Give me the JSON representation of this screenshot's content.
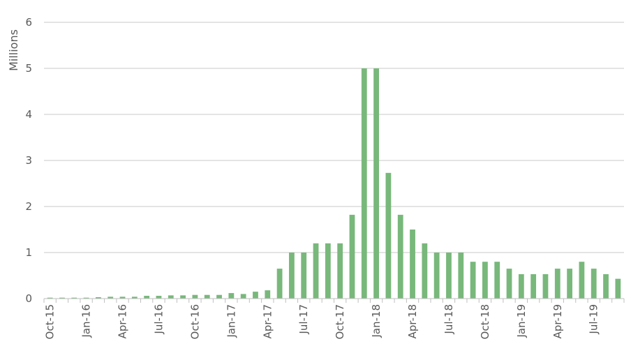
{
  "chart_data": {
    "type": "bar",
    "title": "",
    "xlabel": "",
    "ylabel": "Millions",
    "ylim": [
      0,
      6
    ],
    "yticks": [
      0,
      1,
      2,
      3,
      4,
      5,
      6
    ],
    "grid": true,
    "legend": "none",
    "colors": {
      "bar": "#78b87b",
      "grid": "#c9c9c9",
      "axis": "#bfbfbf",
      "text": "#595959"
    },
    "categories": [
      "Oct-15",
      "Nov-15",
      "Dec-15",
      "Jan-16",
      "Feb-16",
      "Mar-16",
      "Apr-16",
      "May-16",
      "Jun-16",
      "Jul-16",
      "Aug-16",
      "Sep-16",
      "Oct-16",
      "Nov-16",
      "Dec-16",
      "Jan-17",
      "Feb-17",
      "Mar-17",
      "Apr-17",
      "May-17",
      "Jun-17",
      "Jul-17",
      "Aug-17",
      "Sep-17",
      "Oct-17",
      "Nov-17",
      "Dec-17",
      "Jan-18",
      "Feb-18",
      "Mar-18",
      "Apr-18",
      "May-18",
      "Jun-18",
      "Jul-18",
      "Aug-18",
      "Sep-18",
      "Oct-18",
      "Nov-18",
      "Dec-18",
      "Jan-19",
      "Feb-19",
      "Mar-19",
      "Apr-19",
      "May-19",
      "Jun-19",
      "Jul-19",
      "Aug-19",
      "Sep-19"
    ],
    "values": [
      0.02,
      0.02,
      0.02,
      0.02,
      0.03,
      0.04,
      0.04,
      0.04,
      0.06,
      0.06,
      0.07,
      0.07,
      0.08,
      0.08,
      0.08,
      0.12,
      0.1,
      0.15,
      0.18,
      0.65,
      1.0,
      1.0,
      1.2,
      1.2,
      1.2,
      1.82,
      5.0,
      5.0,
      2.73,
      1.82,
      1.5,
      1.2,
      1.0,
      1.0,
      1.0,
      0.8,
      0.8,
      0.8,
      0.65,
      0.53,
      0.53,
      0.53,
      0.65,
      0.65,
      0.8,
      0.65,
      0.53,
      0.43
    ],
    "xtick_labels": [
      "Oct-15",
      "Jan-16",
      "Apr-16",
      "Jul-16",
      "Oct-16",
      "Jan-17",
      "Apr-17",
      "Jul-17",
      "Oct-17",
      "Jan-18",
      "Apr-18",
      "Jul-18",
      "Oct-18",
      "Jan-19",
      "Apr-19",
      "Jul-19"
    ]
  }
}
